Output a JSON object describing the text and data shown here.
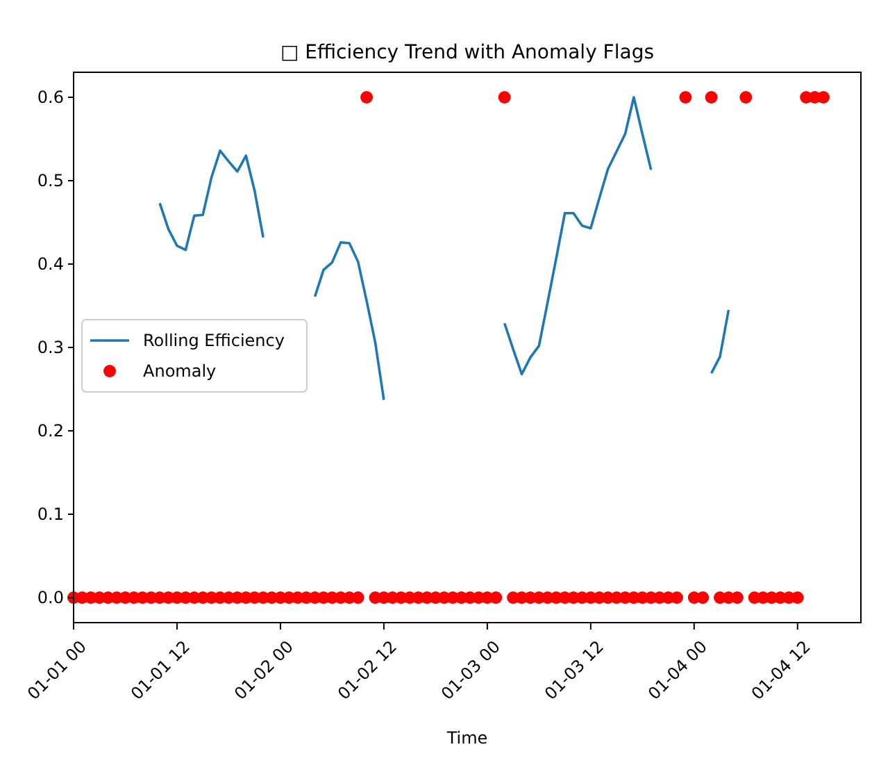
{
  "chart_data": {
    "type": "scatter",
    "title": "□ Efficiency Trend with Anomaly Flags",
    "xlabel": "Time",
    "xlim": [
      "--01-01T00:00",
      "--01-04T19:21"
    ],
    "xticks": [
      {
        "value": "--01-01T00:00",
        "label": "01-01 00"
      },
      {
        "value": "--01-01T12:00",
        "label": "01-01 12"
      },
      {
        "value": "--01-02T00:00",
        "label": "01-02 00"
      },
      {
        "value": "--01-02T12:00",
        "label": "01-02 12"
      },
      {
        "value": "--01-03T00:00",
        "label": "01-03 00"
      },
      {
        "value": "--01-03T12:00",
        "label": "01-03 12"
      },
      {
        "value": "--01-04T00:00",
        "label": "01-04 00"
      },
      {
        "value": "--01-04T12:00",
        "label": "01-04 12"
      }
    ],
    "ylim": [
      -0.03,
      0.63
    ],
    "yticks": [
      {
        "value": 0,
        "label": "0.0"
      },
      {
        "value": 0.1,
        "label": "0.1"
      },
      {
        "value": 0.2,
        "label": "0.2"
      },
      {
        "value": 0.3,
        "label": "0.3"
      },
      {
        "value": 0.4,
        "label": "0.4"
      },
      {
        "value": 0.5,
        "label": "0.5"
      },
      {
        "value": 0.6,
        "label": "0.6"
      }
    ],
    "grid": false,
    "legend": "left",
    "marker": "circle",
    "x": [
      "--01-01T00:00",
      "--01-01T01:00",
      "--01-01T02:00",
      "--01-01T03:00",
      "--01-01T04:00",
      "--01-01T05:00",
      "--01-01T06:00",
      "--01-01T07:00",
      "--01-01T08:00",
      "--01-01T09:00",
      "--01-01T10:00",
      "--01-01T11:00",
      "--01-01T12:00",
      "--01-01T13:00",
      "--01-01T14:00",
      "--01-01T15:00",
      "--01-01T16:00",
      "--01-01T17:00",
      "--01-01T18:00",
      "--01-01T19:00",
      "--01-01T20:00",
      "--01-01T21:00",
      "--01-01T22:00",
      "--01-01T23:00",
      "--01-02T00:00",
      "--01-02T01:00",
      "--01-02T02:00",
      "--01-02T03:00",
      "--01-02T04:00",
      "--01-02T05:00",
      "--01-02T06:00",
      "--01-02T07:00",
      "--01-02T08:00",
      "--01-02T09:00",
      "--01-02T10:00",
      "--01-02T11:00",
      "--01-02T12:00",
      "--01-02T13:00",
      "--01-02T14:00",
      "--01-02T15:00",
      "--01-02T16:00",
      "--01-02T17:00",
      "--01-02T18:00",
      "--01-02T19:00",
      "--01-02T20:00",
      "--01-02T21:00",
      "--01-02T22:00",
      "--01-02T23:00",
      "--01-03T00:00",
      "--01-03T01:00",
      "--01-03T02:00",
      "--01-03T03:00",
      "--01-03T04:00",
      "--01-03T05:00",
      "--01-03T06:00",
      "--01-03T07:00",
      "--01-03T08:00",
      "--01-03T09:00",
      "--01-03T10:00",
      "--01-03T11:00",
      "--01-03T12:00",
      "--01-03T13:00",
      "--01-03T14:00",
      "--01-03T15:00",
      "--01-03T16:00",
      "--01-03T17:00",
      "--01-03T18:00",
      "--01-03T19:00",
      "--01-03T20:00",
      "--01-03T21:00",
      "--01-03T22:00",
      "--01-03T23:00",
      "--01-04T00:00",
      "--01-04T01:00",
      "--01-04T02:00",
      "--01-04T03:00",
      "--01-04T04:00",
      "--01-04T05:00",
      "--01-04T06:00",
      "--01-04T07:00",
      "--01-04T08:00",
      "--01-04T09:00",
      "--01-04T10:00",
      "--01-04T11:00",
      "--01-04T12:00",
      "--01-04T13:00",
      "--01-04T14:00",
      "--01-04T15:00"
    ],
    "series": [
      {
        "name": "Rolling Efficiency",
        "type": "line",
        "color": "#1f77b4",
        "marker": "none",
        "line_style": "solid",
        "values": [
          null,
          null,
          null,
          null,
          null,
          null,
          null,
          null,
          null,
          null,
          0.473,
          0.442,
          0.422,
          0.417,
          0.458,
          0.459,
          0.504,
          0.536,
          0.523,
          0.511,
          0.53,
          0.488,
          0.432,
          null,
          null,
          null,
          null,
          null,
          0.361,
          0.393,
          0.402,
          0.426,
          0.425,
          0.403,
          0.356,
          0.306,
          0.237,
          null,
          null,
          null,
          null,
          null,
          null,
          null,
          null,
          null,
          null,
          null,
          null,
          null,
          0.329,
          0.298,
          0.268,
          0.288,
          0.302,
          0.354,
          0.407,
          0.461,
          0.461,
          0.446,
          0.443,
          0.479,
          0.514,
          0.535,
          0.556,
          0.6,
          0.556,
          0.513,
          null,
          null,
          null,
          null,
          null,
          null,
          0.269,
          0.289,
          0.345,
          null,
          null,
          null,
          null,
          null,
          null,
          null,
          null,
          null,
          null,
          null
        ]
      },
      {
        "name": "Anomaly",
        "color": "#ff0000",
        "values": [
          0,
          0,
          0,
          0,
          0,
          0,
          0,
          0,
          0,
          0,
          0,
          0,
          0,
          0,
          0,
          0,
          0,
          0,
          0,
          0,
          0,
          0,
          0,
          0,
          0,
          0,
          0,
          0,
          0,
          0,
          0,
          0,
          0,
          0,
          0.6,
          0,
          0,
          0,
          0,
          0,
          0,
          0,
          0,
          0,
          0,
          0,
          0,
          0,
          0,
          0,
          0.6,
          0,
          0,
          0,
          0,
          0,
          0,
          0,
          0,
          0,
          0,
          0,
          0,
          0,
          0,
          0,
          0,
          0,
          0,
          0,
          0,
          0.6,
          0,
          0,
          0.6,
          0,
          0,
          0,
          0.6,
          0,
          0,
          0,
          0,
          0,
          0,
          0.6,
          0.6,
          0.6
        ]
      }
    ]
  }
}
